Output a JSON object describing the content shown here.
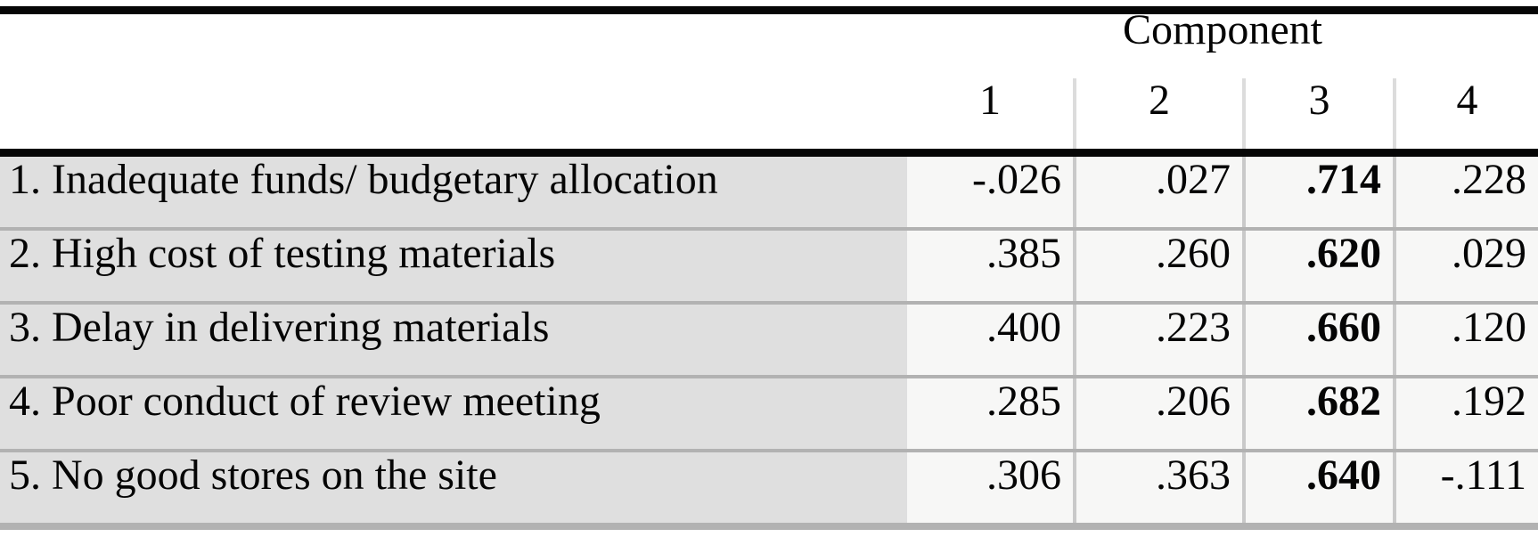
{
  "table": {
    "title": "Component",
    "column_headers": [
      "1",
      "2",
      "3",
      "4"
    ],
    "rows": [
      {
        "label": "1. Inadequate funds/ budgetary allocation",
        "values": [
          "-.026",
          ".027",
          ".714",
          ".228"
        ]
      },
      {
        "label": "2. High cost of testing materials",
        "values": [
          ".385",
          ".260",
          ".620",
          ".029"
        ]
      },
      {
        "label": "3. Delay in delivering materials",
        "values": [
          ".400",
          ".223",
          ".660",
          ".120"
        ]
      },
      {
        "label": "4. Poor conduct of review meeting",
        "values": [
          ".285",
          ".206",
          ".682",
          ".192"
        ]
      },
      {
        "label": "5. No good stores on the site",
        "values": [
          ".306",
          ".363",
          ".640",
          "-.111"
        ]
      }
    ],
    "highlighted_column_index": 2
  },
  "colors": {
    "page_background": "#ffffff",
    "label_column_background": "#dfdfdf",
    "value_cell_background": "#f7f7f6",
    "black_rule": "#060606",
    "row_separator": "#b2b2b2",
    "column_separator": "#c9c9c9",
    "header_column_separator": "#dcdcdc",
    "text": "#050505"
  },
  "chart_data": {
    "type": "table",
    "title": "Component",
    "columns": [
      "1",
      "2",
      "3",
      "4"
    ],
    "row_labels": [
      "1. Inadequate funds/ budgetary allocation",
      "2. High cost of testing materials",
      "3. Delay in delivering materials",
      "4. Poor conduct of review meeting",
      "5. No good stores on the site"
    ],
    "values": [
      [
        -0.026,
        0.027,
        0.714,
        0.228
      ],
      [
        0.385,
        0.26,
        0.62,
        0.029
      ],
      [
        0.4,
        0.223,
        0.66,
        0.12
      ],
      [
        0.285,
        0.206,
        0.682,
        0.192
      ],
      [
        0.306,
        0.363,
        0.64,
        -0.111
      ]
    ],
    "bold_values_column": 3,
    "layout_hints": "SPSS-style rotated component matrix; component 3 loadings shown in bold; label column shaded gray, value cells near-white"
  }
}
